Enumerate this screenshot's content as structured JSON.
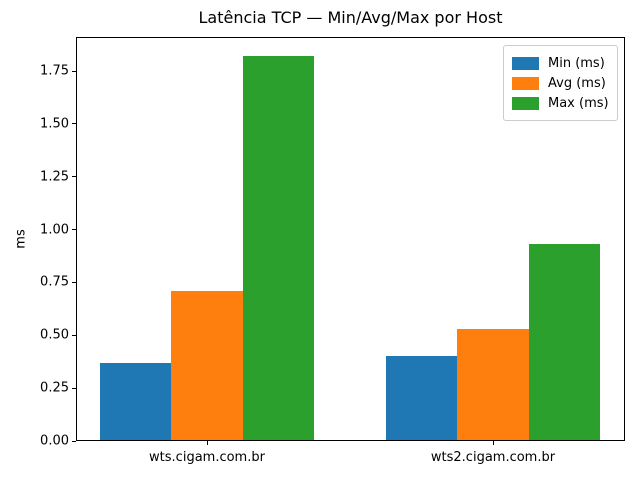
{
  "chart_data": {
    "type": "bar",
    "title": "Latência TCP — Min/Avg/Max por Host",
    "xlabel": "",
    "ylabel": "ms",
    "categories": [
      "wts.cigam.com.br",
      "wts2.cigam.com.br"
    ],
    "series": [
      {
        "name": "Min (ms)",
        "color": "#1f77b4",
        "values": [
          0.37,
          0.4
        ]
      },
      {
        "name": "Avg (ms)",
        "color": "#ff7f0e",
        "values": [
          0.71,
          0.53
        ]
      },
      {
        "name": "Max (ms)",
        "color": "#2ca02c",
        "values": [
          1.82,
          0.93
        ]
      }
    ],
    "ylim": [
      0,
      1.911
    ],
    "ytick_values": [
      0.0,
      0.25,
      0.5,
      0.75,
      1.0,
      1.25,
      1.5,
      1.75
    ],
    "ytick_labels": [
      "0.00",
      "0.25",
      "0.50",
      "0.75",
      "1.00",
      "1.25",
      "1.50",
      "1.75"
    ],
    "grid": false,
    "legend_position": "upper right",
    "background_color": "#ffffff",
    "spine_color": "#000000"
  }
}
